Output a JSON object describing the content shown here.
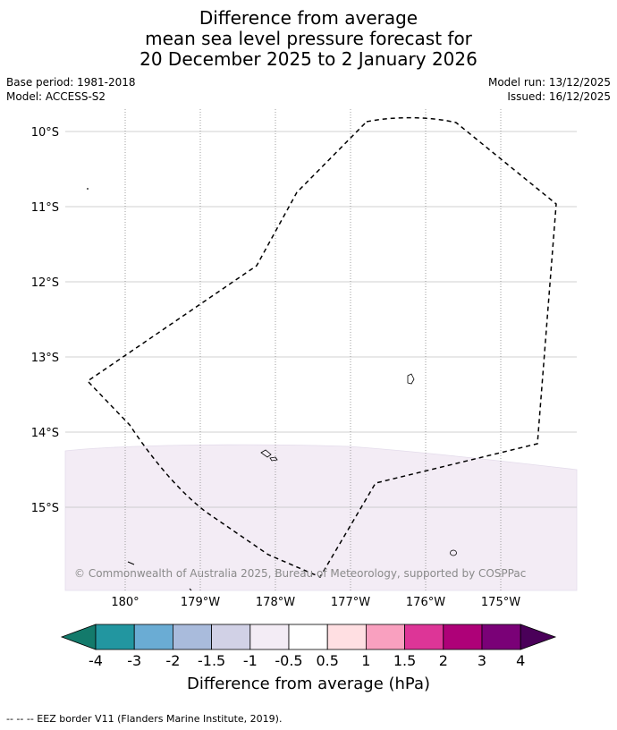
{
  "title": {
    "line1": "Difference from average",
    "line2": "mean sea level pressure forecast for",
    "line3": "20 December 2025 to 2 January 2026"
  },
  "meta": {
    "base_period": "Base period: 1981-2018",
    "model": "Model: ACCESS-S2",
    "model_run": "Model run: 13/12/2025",
    "issued": "Issued: 16/12/2025"
  },
  "map": {
    "lat_labels": [
      "10°S",
      "11°S",
      "12°S",
      "13°S",
      "14°S",
      "15°S"
    ],
    "lon_labels": [
      "180°",
      "179°W",
      "178°W",
      "177°W",
      "176°W",
      "175°W"
    ],
    "anomaly_fill_color": "#f3ecf5",
    "copyright": "© Commonwealth of Australia 2025, Bureau of Meteorology, supported by COSPPac"
  },
  "colorbar": {
    "label": "Difference from average (hPa)",
    "ticks": [
      "-4",
      "-3",
      "-2",
      "-1.5",
      "-1",
      "-0.5",
      "0.5",
      "1",
      "1.5",
      "2",
      "3",
      "4"
    ],
    "colors": [
      "#137a6b",
      "#2296a0",
      "#6aacd4",
      "#a9bbdc",
      "#d1d1e6",
      "#f3ecf5",
      "#ffffff",
      "#ffdfe2",
      "#f9a0bf",
      "#dd3597",
      "#ae0178",
      "#7a0177",
      "#4a0059"
    ]
  },
  "footer": {
    "legend": "--  --  -- EEZ border V11 (Flanders Marine Institute, 2019)."
  }
}
